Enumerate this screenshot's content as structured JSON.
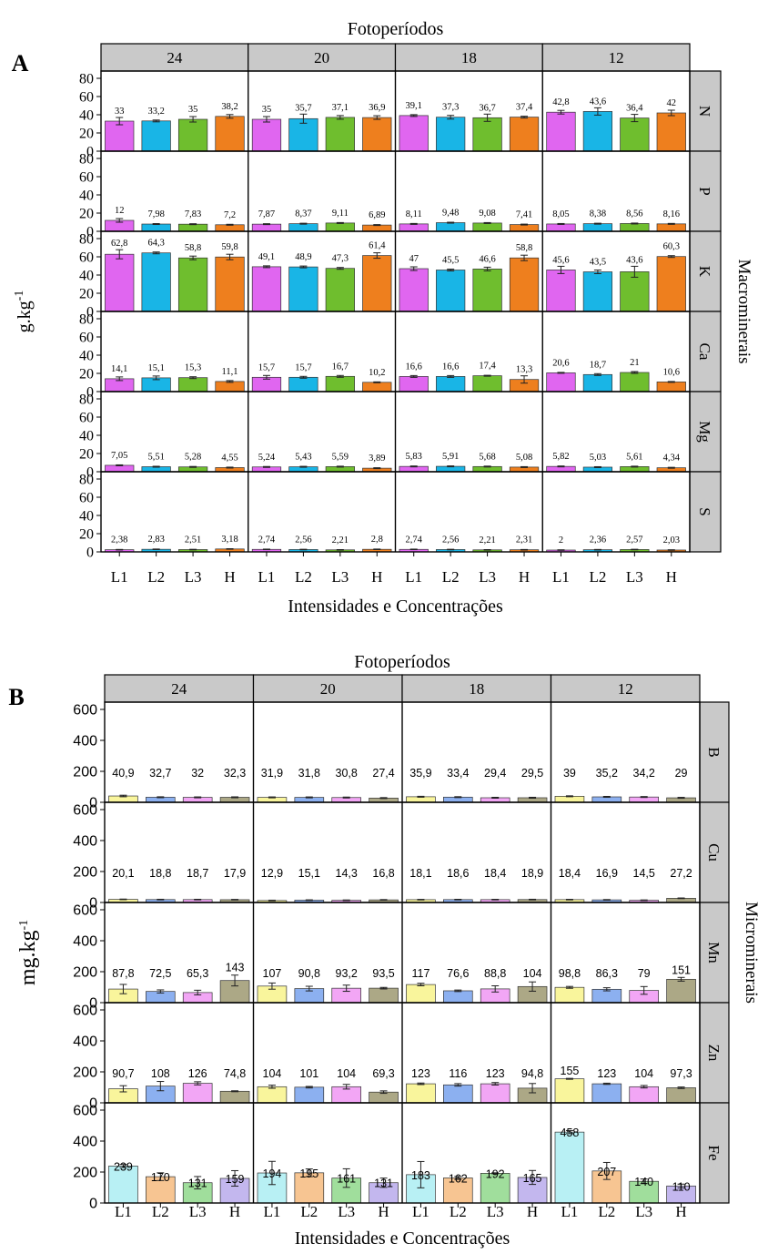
{
  "chart_data": [
    {
      "type": "bar",
      "panel_label": "A",
      "title": "Fotoperíodos",
      "xlabel": "Intensidades e Concentrações",
      "ylabel": "g.kg-1",
      "ylabel_main": "g.kg",
      "ylabel_sup": "-1",
      "side_label": "Macrominerais",
      "ylim": [
        0,
        80
      ],
      "yticks": [
        "0",
        "20",
        "40",
        "60",
        "80"
      ],
      "columns": [
        "24",
        "20",
        "18",
        "12"
      ],
      "categories": [
        "L1",
        "L2",
        "L3",
        "H"
      ],
      "colors": [
        "#e066f0",
        "#19b5e6",
        "#6fbe2e",
        "#ee7f1e"
      ],
      "rows": [
        {
          "name": "N",
          "values": [
            [
              33,
              33.2,
              35,
              38.2
            ],
            [
              35,
              35.7,
              37.1,
              36.9
            ],
            [
              39.1,
              37.3,
              36.7,
              37.4
            ],
            [
              42.8,
              43.6,
              36.4,
              42
            ]
          ],
          "labels": [
            [
              "33",
              "33,2",
              "35",
              "38,2"
            ],
            [
              "35",
              "35,7",
              "37,1",
              "36,9"
            ],
            [
              "39,1",
              "37,3",
              "36,7",
              "37,4"
            ],
            [
              "42,8",
              "43,6",
              "36,4",
              "42"
            ]
          ],
          "errors": [
            [
              4,
              1,
              3,
              2
            ],
            [
              3,
              5,
              2,
              2
            ],
            [
              1,
              2,
              4,
              1
            ],
            [
              2,
              4,
              4,
              3
            ]
          ]
        },
        {
          "name": "P",
          "values": [
            [
              12,
              7.98,
              7.83,
              7.2
            ],
            [
              7.87,
              8.37,
              9.11,
              6.89
            ],
            [
              8.11,
              9.48,
              9.08,
              7.41
            ],
            [
              8.05,
              8.38,
              8.56,
              8.16
            ]
          ],
          "labels": [
            [
              "12",
              "7,98",
              "7,83",
              "7,2"
            ],
            [
              "7,87",
              "8,37",
              "9,11",
              "6,89"
            ],
            [
              "8,11",
              "9,48",
              "9,08",
              "7,41"
            ],
            [
              "8,05",
              "8,38",
              "8,56",
              "8,16"
            ]
          ],
          "errors": [
            [
              2,
              0.5,
              0.5,
              0.5
            ],
            [
              0.5,
              0.5,
              0.5,
              0.5
            ],
            [
              0.5,
              0.5,
              0.5,
              0.5
            ],
            [
              0.5,
              0.5,
              0.5,
              0.5
            ]
          ]
        },
        {
          "name": "K",
          "values": [
            [
              62.8,
              64.3,
              58.8,
              59.8
            ],
            [
              49.1,
              48.9,
              47.3,
              61.4
            ],
            [
              47,
              45.5,
              46.6,
              58.8
            ],
            [
              45.6,
              43.5,
              43.6,
              60.3
            ]
          ],
          "labels": [
            [
              "62,8",
              "64,3",
              "58,8",
              "59,8"
            ],
            [
              "49,1",
              "48,9",
              "47,3",
              "61,4"
            ],
            [
              "47",
              "45,5",
              "46,6",
              "58,8"
            ],
            [
              "45,6",
              "43,5",
              "43,6",
              "60,3"
            ]
          ],
          "errors": [
            [
              5,
              1,
              2,
              3
            ],
            [
              1,
              1,
              1,
              3
            ],
            [
              2,
              1,
              2,
              3
            ],
            [
              4,
              2,
              6,
              1
            ]
          ]
        },
        {
          "name": "Ca",
          "values": [
            [
              14.1,
              15.1,
              15.3,
              11.1
            ],
            [
              15.7,
              15.7,
              16.7,
              10.2
            ],
            [
              16.6,
              16.6,
              17.4,
              13.3
            ],
            [
              20.6,
              18.7,
              21,
              10.6
            ]
          ],
          "labels": [
            [
              "14,1",
              "15,1",
              "15,3",
              "11,1"
            ],
            [
              "15,7",
              "15,7",
              "16,7",
              "10,2"
            ],
            [
              "16,6",
              "16,6",
              "17,4",
              "13,3"
            ],
            [
              "20,6",
              "18,7",
              "21",
              "10,6"
            ]
          ],
          "errors": [
            [
              2,
              2,
              1,
              1
            ],
            [
              2,
              1,
              1,
              0.5
            ],
            [
              1,
              1,
              0.5,
              4
            ],
            [
              0.5,
              1,
              1,
              0.5
            ]
          ]
        },
        {
          "name": "Mg",
          "values": [
            [
              7.05,
              5.51,
              5.28,
              4.55
            ],
            [
              5.24,
              5.43,
              5.59,
              3.89
            ],
            [
              5.83,
              5.91,
              5.68,
              5.08
            ],
            [
              5.82,
              5.03,
              5.61,
              4.34
            ]
          ],
          "labels": [
            [
              "7,05",
              "5,51",
              "5,28",
              "4,55"
            ],
            [
              "5,24",
              "5,43",
              "5,59",
              "3,89"
            ],
            [
              "5,83",
              "5,91",
              "5,68",
              "5,08"
            ],
            [
              "5,82",
              "5,03",
              "5,61",
              "4,34"
            ]
          ],
          "errors": [
            [
              0.5,
              0.5,
              0.5,
              0.5
            ],
            [
              0.5,
              0.5,
              0.5,
              0.5
            ],
            [
              0.5,
              0.5,
              0.5,
              0.5
            ],
            [
              0.5,
              0.5,
              0.5,
              0.5
            ]
          ]
        },
        {
          "name": "S",
          "values": [
            [
              2.38,
              2.83,
              2.51,
              3.18
            ],
            [
              2.74,
              2.56,
              2.21,
              2.8
            ],
            [
              2.74,
              2.56,
              2.21,
              2.31
            ],
            [
              2,
              2.36,
              2.57,
              2.03
            ]
          ],
          "labels": [
            [
              "2,38",
              "2,83",
              "2,51",
              "3,18"
            ],
            [
              "2,74",
              "2,56",
              "2,21",
              "2,8"
            ],
            [
              "2,74",
              "2,56",
              "2,21",
              "2,31"
            ],
            [
              "2",
              "2,36",
              "2,57",
              "2,03"
            ]
          ],
          "errors": [
            [
              0.3,
              0.3,
              0.3,
              0.3
            ],
            [
              0.3,
              0.3,
              0.3,
              0.3
            ],
            [
              0.3,
              0.3,
              0.3,
              0.3
            ],
            [
              0.3,
              0.3,
              0.3,
              0.3
            ]
          ]
        }
      ]
    },
    {
      "type": "bar",
      "panel_label": "B",
      "title": "Fotoperíodos",
      "xlabel": "Intensidades e Concentrações",
      "ylabel": "mg.kg-1",
      "ylabel_main": "mg.kg",
      "ylabel_sup": "-1",
      "side_label": "Microminerais",
      "ylim": [
        0,
        600
      ],
      "yticks": [
        "0",
        "200",
        "400",
        "600"
      ],
      "columns": [
        "24",
        "20",
        "18",
        "12"
      ],
      "categories": [
        "L1",
        "L2",
        "L3",
        "H"
      ],
      "colors": [
        "#f9f59c",
        "#8cb0f0",
        "#f2a6f5",
        "#aca886"
      ],
      "fe_colors": [
        "#b8f0f4",
        "#f7c592",
        "#a0de9c",
        "#c3b7ee"
      ],
      "rows": [
        {
          "name": "B",
          "values": [
            [
              40.9,
              32.7,
              32,
              32.3
            ],
            [
              31.9,
              31.8,
              30.8,
              27.4
            ],
            [
              35.9,
              33.4,
              29.4,
              29.5
            ],
            [
              39,
              35.2,
              34.2,
              29
            ]
          ],
          "labels": [
            [
              "40,9",
              "32,7",
              "32",
              "32,3"
            ],
            [
              "31,9",
              "31,8",
              "30,8",
              "27,4"
            ],
            [
              "35,9",
              "33,4",
              "29,4",
              "29,5"
            ],
            [
              "39",
              "35,2",
              "34,2",
              "29"
            ]
          ],
          "errors": [
            [
              5,
              3,
              3,
              3
            ],
            [
              3,
              3,
              3,
              3
            ],
            [
              3,
              3,
              3,
              3
            ],
            [
              3,
              3,
              3,
              3
            ]
          ]
        },
        {
          "name": "Cu",
          "values": [
            [
              20.1,
              18.8,
              18.7,
              17.9
            ],
            [
              12.9,
              15.1,
              14.3,
              16.8
            ],
            [
              18.1,
              18.6,
              18.4,
              18.9
            ],
            [
              18.4,
              16.9,
              14.5,
              27.2
            ]
          ],
          "labels": [
            [
              "20,1",
              "18,8",
              "18,7",
              "17,9"
            ],
            [
              "12,9",
              "15,1",
              "14,3",
              "16,8"
            ],
            [
              "18,1",
              "18,6",
              "18,4",
              "18,9"
            ],
            [
              "18,4",
              "16,9",
              "14,5",
              "27,2"
            ]
          ],
          "errors": [
            [
              2,
              2,
              2,
              2
            ],
            [
              2,
              2,
              2,
              2
            ],
            [
              2,
              2,
              2,
              2
            ],
            [
              2,
              2,
              2,
              2
            ]
          ]
        },
        {
          "name": "Mn",
          "values": [
            [
              87.8,
              72.5,
              65.3,
              143
            ],
            [
              107,
              90.8,
              93.2,
              93.5
            ],
            [
              117,
              76.6,
              88.8,
              104
            ],
            [
              98.8,
              86.3,
              79,
              151
            ]
          ],
          "labels": [
            [
              "87,8",
              "72,5",
              "65,3",
              "143"
            ],
            [
              "107",
              "90,8",
              "93,2",
              "93,5"
            ],
            [
              "117",
              "76,6",
              "88,8",
              "104"
            ],
            [
              "98,8",
              "86,3",
              "79",
              "151"
            ]
          ],
          "errors": [
            [
              30,
              10,
              15,
              35
            ],
            [
              20,
              15,
              20,
              5
            ],
            [
              8,
              5,
              20,
              30
            ],
            [
              6,
              10,
              25,
              12
            ]
          ]
        },
        {
          "name": "Zn",
          "values": [
            [
              90.7,
              108,
              126,
              74.8
            ],
            [
              104,
              101,
              104,
              69.3
            ],
            [
              123,
              116,
              123,
              94.8
            ],
            [
              155,
              123,
              104,
              97.3
            ]
          ],
          "labels": [
            [
              "90,7",
              "108",
              "126",
              "74,8"
            ],
            [
              "104",
              "101",
              "104",
              "69,3"
            ],
            [
              "123",
              "116",
              "123",
              "94,8"
            ],
            [
              "155",
              "123",
              "104",
              "97,3"
            ]
          ],
          "errors": [
            [
              20,
              30,
              10,
              3
            ],
            [
              10,
              5,
              15,
              8
            ],
            [
              5,
              8,
              8,
              30
            ],
            [
              3,
              4,
              8,
              5
            ]
          ]
        },
        {
          "name": "Fe",
          "values": [
            [
              239,
              170,
              131,
              159
            ],
            [
              194,
              195,
              161,
              131
            ],
            [
              183,
              162,
              192,
              165
            ],
            [
              458,
              207,
              140,
              110
            ]
          ],
          "labels": [
            [
              "239",
              "170",
              "131",
              "159"
            ],
            [
              "194",
              "195",
              "161",
              "131"
            ],
            [
              "183",
              "162",
              "192",
              "165"
            ],
            [
              "458",
              "207",
              "140",
              "110"
            ]
          ],
          "errors": [
            [
              10,
              25,
              40,
              50
            ],
            [
              75,
              25,
              60,
              30
            ],
            [
              85,
              10,
              3,
              45
            ],
            [
              10,
              55,
              15,
              12
            ]
          ]
        }
      ]
    }
  ]
}
